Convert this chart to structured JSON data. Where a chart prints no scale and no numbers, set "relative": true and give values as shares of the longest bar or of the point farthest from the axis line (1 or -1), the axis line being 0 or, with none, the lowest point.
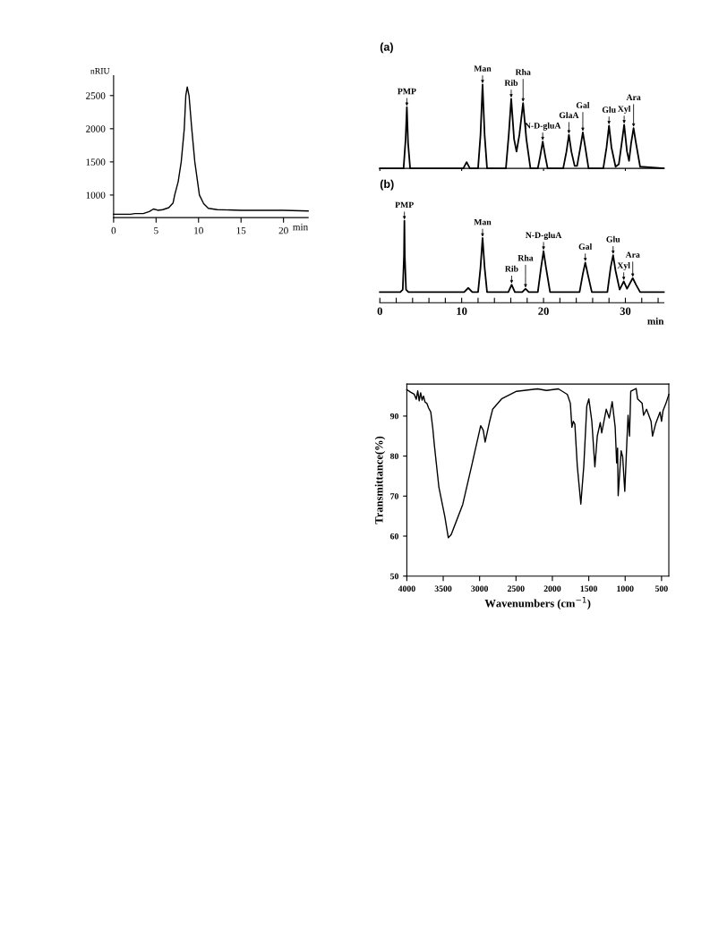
{
  "chart_data": [
    {
      "type": "line",
      "xlabel": "min",
      "ylabel": "nRIU",
      "xlim": [
        0,
        22.9
      ],
      "ylim": [
        660,
        2800
      ],
      "xticks": [
        0,
        5,
        10,
        15,
        20
      ],
      "yticks": [
        1000,
        1500,
        2000,
        2500
      ],
      "x": [
        0,
        2,
        2.5,
        3.5,
        4.2,
        4.7,
        5.2,
        5.8,
        6.5,
        7.0,
        7.19,
        7.6,
        7.96,
        8.32,
        8.5,
        8.67,
        8.88,
        9.2,
        9.56,
        10.1,
        10.6,
        11.15,
        12.2,
        15,
        20,
        22.9
      ],
      "series": [
        {
          "color": "#000000",
          "values": [
            710,
            710,
            720,
            720,
            750,
            790,
            770,
            780,
            810,
            880,
            1000,
            1200,
            1500,
            2000,
            2500,
            2630,
            2500,
            2000,
            1500,
            1000,
            870,
            800,
            780,
            770,
            770,
            760
          ]
        }
      ]
    },
    {
      "type": "line",
      "title": "(a)",
      "relative": true,
      "tick_labels": false,
      "xlim": [
        0,
        34.7
      ],
      "xticks": [
        0,
        10,
        20,
        30
      ],
      "x": [
        0,
        2.9,
        3.15,
        3.3,
        3.45,
        3.7,
        10.2,
        10.6,
        11.0,
        12.0,
        12.3,
        12.55,
        12.8,
        13.1,
        15.4,
        15.75,
        16.05,
        16.4,
        16.7,
        17.05,
        17.5,
        17.9,
        18.4,
        19.3,
        19.6,
        19.9,
        20.2,
        20.5,
        22.4,
        22.8,
        23.1,
        23.4,
        23.8,
        24.1,
        24.5,
        24.8,
        25.1,
        25.5,
        27.3,
        27.7,
        28.0,
        28.3,
        28.8,
        29.2,
        29.55,
        29.85,
        30.2,
        30.45,
        30.7,
        31.0,
        31.3,
        31.8,
        34.7
      ],
      "series": [
        {
          "color": "#000000",
          "values": [
            0,
            0,
            0.35,
            0.73,
            0.3,
            0,
            0,
            0.075,
            0,
            0,
            0.4,
            1,
            0.4,
            0,
            0,
            0.4,
            0.83,
            0.35,
            0.2,
            0.4,
            0.78,
            0.35,
            0,
            0,
            0.15,
            0.32,
            0.15,
            0,
            0,
            0.2,
            0.4,
            0.2,
            0.03,
            0.03,
            0.25,
            0.43,
            0.25,
            0,
            0,
            0.25,
            0.51,
            0.25,
            0.02,
            0.05,
            0.3,
            0.52,
            0.2,
            0.09,
            0.3,
            0.48,
            0.3,
            0.02,
            0
          ]
        }
      ],
      "annotations": [
        {
          "text": "PMP",
          "x": 3.3,
          "y": 0.73
        },
        {
          "text": "Man",
          "x": 12.55,
          "y": 1
        },
        {
          "text": "Rib",
          "x": 16.05,
          "y": 0.83
        },
        {
          "text": "Rha",
          "x": 17.5,
          "y": 0.78
        },
        {
          "text": "N-D-gluA",
          "x": 19.9,
          "y": 0.32
        },
        {
          "text": "GlaA",
          "x": 23.1,
          "y": 0.4
        },
        {
          "text": "Gal",
          "x": 24.8,
          "y": 0.43
        },
        {
          "text": "Glu",
          "x": 28.0,
          "y": 0.51
        },
        {
          "text": "Xyl",
          "x": 29.85,
          "y": 0.52
        },
        {
          "text": "Ara",
          "x": 31.0,
          "y": 0.48
        }
      ]
    },
    {
      "type": "line",
      "title": "(b)",
      "relative": true,
      "tick_labels": "x",
      "xlabel": "min",
      "xlim": [
        0,
        34.7
      ],
      "xticks": [
        0,
        {
          "value": 2,
          "label": null
        },
        {
          "value": 4,
          "label": null
        },
        {
          "value": 6,
          "label": null
        },
        {
          "value": 8,
          "label": null
        },
        10,
        {
          "value": 12,
          "label": null
        },
        {
          "value": 14,
          "label": null
        },
        {
          "value": 16,
          "label": null
        },
        {
          "value": 18,
          "label": null
        },
        20,
        {
          "value": 22,
          "label": null
        },
        {
          "value": 24,
          "label": null
        },
        {
          "value": 26,
          "label": null
        },
        {
          "value": 28,
          "label": null
        },
        30,
        {
          "value": 32,
          "label": null
        },
        {
          "value": 34,
          "label": null
        }
      ],
      "x": [
        0,
        2.5,
        2.8,
        2.95,
        3.0,
        3.05,
        3.2,
        3.5,
        10.3,
        10.8,
        11.3,
        12.0,
        12.3,
        12.55,
        12.8,
        13.1,
        15.7,
        16.1,
        16.5,
        17.4,
        17.8,
        18.2,
        19.3,
        19.7,
        20.0,
        20.3,
        20.8,
        24.4,
        24.8,
        25.1,
        25.4,
        25.9,
        27.8,
        28.2,
        28.5,
        28.8,
        29.3,
        29.8,
        30.2,
        30.9,
        31.3,
        31.8,
        34.7
      ],
      "series": [
        {
          "color": "#000000",
          "values": [
            0.13,
            0.13,
            0.16,
            0.57,
            1,
            0.57,
            0.16,
            0.13,
            0.13,
            0.18,
            0.13,
            0.13,
            0.43,
            0.79,
            0.43,
            0.13,
            0.13,
            0.22,
            0.13,
            0.13,
            0.17,
            0.13,
            0.13,
            0.43,
            0.63,
            0.43,
            0.13,
            0.13,
            0.35,
            0.49,
            0.35,
            0.13,
            0.13,
            0.43,
            0.58,
            0.39,
            0.16,
            0.26,
            0.17,
            0.3,
            0.22,
            0.13,
            0.13
          ]
        }
      ],
      "annotations": [
        {
          "text": "PMP",
          "x": 3.0,
          "y": 1
        },
        {
          "text": "Man",
          "x": 12.55,
          "y": 0.79
        },
        {
          "text": "Rib",
          "x": 16.1,
          "y": 0.22
        },
        {
          "text": "Rha",
          "x": 17.8,
          "y": 0.17
        },
        {
          "text": "N-D-gluA",
          "x": 20.0,
          "y": 0.63
        },
        {
          "text": "Gal",
          "x": 25.1,
          "y": 0.49
        },
        {
          "text": "Glu",
          "x": 28.5,
          "y": 0.58
        },
        {
          "text": "Xyl",
          "x": 29.8,
          "y": 0.26
        },
        {
          "text": "Ara",
          "x": 30.9,
          "y": 0.3
        }
      ]
    },
    {
      "type": "line",
      "xlabel": "Wavenumbers (cm$^{−1}$)",
      "ylabel": "Transmittance(%)",
      "xlim": [
        4000,
        400
      ],
      "ylim": [
        50,
        98
      ],
      "xticks": [
        4000,
        3500,
        3000,
        2500,
        2000,
        1500,
        1000,
        500
      ],
      "yticks": [
        50,
        60,
        70,
        80,
        90
      ],
      "x": [
        4000,
        3950,
        3900,
        3870,
        3850,
        3830,
        3810,
        3790,
        3770,
        3750,
        3725,
        3700,
        3671,
        3643,
        3622,
        3560,
        3478,
        3430,
        3390,
        3232,
        3109,
        2985,
        2950,
        2924,
        2862,
        2821,
        2698,
        2492,
        2205,
        2082,
        1917,
        1794,
        1753,
        1732,
        1712,
        1691,
        1658,
        1609,
        1568,
        1527,
        1499,
        1458,
        1416,
        1383,
        1342,
        1322,
        1260,
        1219,
        1178,
        1137,
        1117,
        1104,
        1096,
        1055,
        1034,
        1005,
        973,
        960,
        940,
        923,
        849,
        829,
        767,
        747,
        706,
        644,
        624,
        582,
        521,
        500,
        480,
        439,
        400
      ],
      "series": [
        {
          "color": "#000000",
          "values": [
            96.6,
            96.0,
            95.5,
            94.2,
            96.3,
            93.8,
            95.8,
            94.0,
            95.0,
            93.5,
            93.2,
            92.0,
            91.0,
            86.9,
            82.8,
            72.3,
            64.9,
            59.6,
            60.4,
            67.9,
            77.6,
            87.6,
            86.5,
            83.5,
            88.7,
            91.7,
            94.3,
            96.2,
            96.8,
            96.4,
            96.8,
            95.4,
            93.2,
            87.2,
            88.7,
            88.0,
            77.6,
            68.0,
            77.6,
            92.5,
            94.3,
            88.7,
            77.3,
            85.0,
            88.4,
            85.8,
            91.7,
            89.5,
            93.6,
            87.2,
            78.3,
            82.0,
            70.1,
            81.3,
            79.8,
            71.2,
            85.0,
            90.2,
            85.0,
            96.2,
            96.9,
            94.3,
            93.2,
            90.2,
            91.7,
            88.7,
            85.0,
            88.0,
            91.0,
            88.7,
            91.3,
            93.2,
            95.4
          ]
        }
      ]
    }
  ]
}
